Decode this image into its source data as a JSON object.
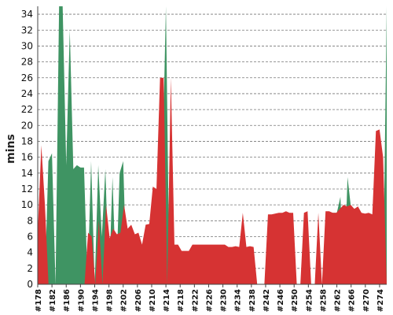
{
  "chart_data": {
    "type": "area",
    "ylabel": "mins",
    "xlabel": "",
    "ylim": [
      0,
      35
    ],
    "yticks": [
      0,
      2,
      4,
      6,
      8,
      10,
      12,
      14,
      16,
      18,
      20,
      22,
      24,
      26,
      28,
      30,
      32,
      34
    ],
    "grid": "horizontal-dashed",
    "x_start": 178,
    "x_end": 276,
    "xtick_labels": [
      "#178",
      "#182",
      "#186",
      "#190",
      "#194",
      "#198",
      "#202",
      "#206",
      "#210",
      "#214",
      "#218",
      "#222",
      "#226",
      "#230",
      "#234",
      "#238",
      "#242",
      "#246",
      "#250",
      "#254",
      "#258",
      "#262",
      "#266",
      "#270",
      "#274"
    ],
    "series": [
      {
        "color": "#3f9463",
        "values": [
          0,
          15.7,
          0,
          15.5,
          16.5,
          0,
          35,
          35,
          15,
          32,
          14.5,
          15,
          14.7,
          14.7,
          0,
          15.5,
          0,
          15,
          6,
          14.5,
          0,
          13.5,
          0,
          14,
          15.5,
          0,
          0,
          0,
          0,
          0,
          0,
          0,
          0,
          12.3,
          0,
          14.5,
          35,
          0,
          0,
          0,
          0,
          0,
          0,
          0,
          0,
          0,
          0,
          0,
          0,
          0,
          0,
          0,
          0,
          0,
          0,
          0,
          0,
          0,
          0,
          0,
          0,
          0,
          0,
          0,
          0,
          0,
          0,
          0,
          8.8,
          8.8,
          8.9,
          9.0,
          0,
          0,
          0,
          0,
          0,
          0,
          0,
          0,
          0,
          0,
          9.0,
          9.0,
          9.0,
          11,
          0,
          13.5,
          9.5,
          9.5,
          0,
          0,
          0,
          0,
          0,
          0,
          0,
          0,
          35
        ]
      },
      {
        "color": "#d63333",
        "values": [
          6.5,
          17.5,
          10,
          0,
          0,
          0,
          0,
          0,
          0,
          0,
          0,
          0,
          0,
          0,
          6.5,
          6,
          0,
          8,
          0,
          10,
          5.8,
          7,
          6.3,
          6.5,
          10,
          7,
          7.5,
          6.3,
          6.5,
          5,
          7.5,
          7.6,
          12.3,
          12,
          26,
          26,
          0,
          26,
          5,
          5,
          4.2,
          4.2,
          4.2,
          5,
          5,
          5,
          5,
          5,
          5,
          5,
          5,
          5,
          5,
          4.7,
          4.7,
          4.8,
          4.7,
          9,
          4.7,
          4.8,
          4.7,
          0,
          0,
          0,
          8.8,
          8.8,
          8.9,
          9.0,
          9.0,
          9.2,
          9.0,
          9.0,
          0,
          0,
          9,
          9.2,
          0,
          0,
          9,
          0,
          9.2,
          9.2,
          9,
          9,
          9.5,
          10,
          9.8,
          10,
          9.5,
          9.8,
          9,
          8.9,
          9,
          8.8,
          19.3,
          19.5,
          16,
          0
        ]
      }
    ]
  }
}
